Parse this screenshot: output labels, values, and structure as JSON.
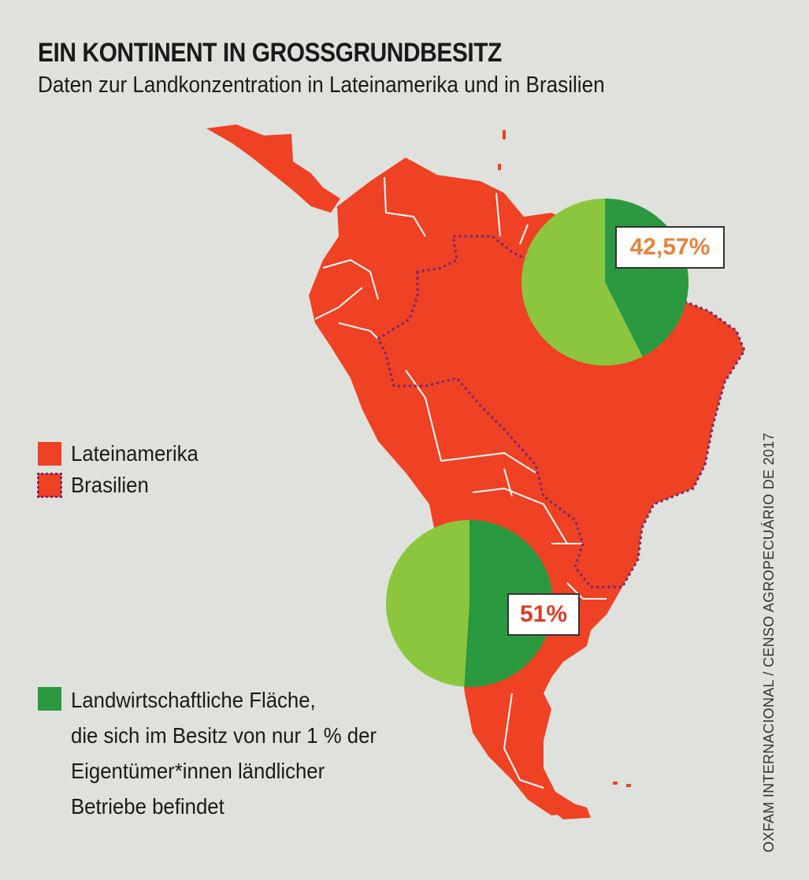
{
  "header": {
    "title": "EIN KONTINENT IN GROSSGRUNDBESITZ",
    "subtitle": "Daten zur Landkonzentration in Lateinamerika und in Brasilien"
  },
  "legend": {
    "latam_label": "Lateinamerika",
    "brazil_label": "Brasilien",
    "green_lines": [
      "Landwirtschaftliche Fläche,",
      "die sich im Besitz von nur 1 % der",
      "Eigentümer*innen ländlicher",
      "Betriebe befindet"
    ]
  },
  "chart_data": {
    "type": "pie",
    "title": "EIN KONTINENT IN GROSSGRUNDBESITZ",
    "series": [
      {
        "name": "Brasilien",
        "share_top1_percent": 42.57,
        "label": "42,57%",
        "label_color": "#e8823a"
      },
      {
        "name": "Lateinamerika",
        "share_top1_percent": 51,
        "label": "51%",
        "label_color": "#e03a2a"
      }
    ]
  },
  "source": "OXFAM INTERNACIONAL / CENSO AGROPECUÁRIO DE 2017",
  "colors": {
    "background": "#dfe2dc",
    "land": "#ef4123",
    "pie_light": "#8cc63f",
    "pie_dark": "#2a9940",
    "brazil_border": "#7a2a6e"
  }
}
